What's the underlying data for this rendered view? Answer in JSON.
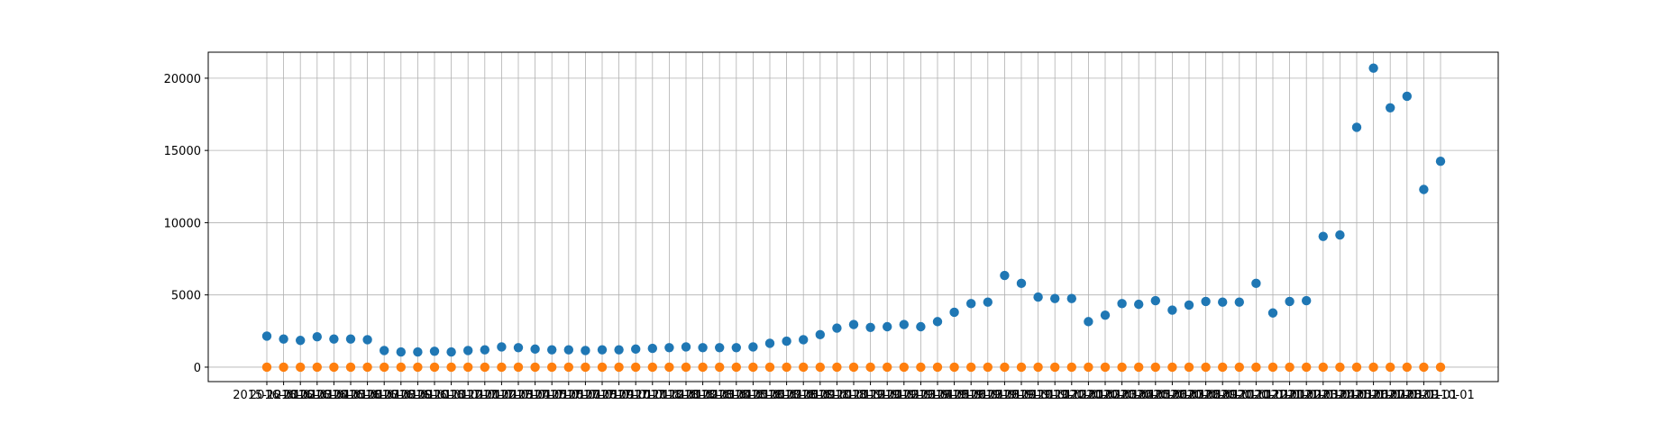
{
  "chart_data": {
    "type": "scatter",
    "title": "",
    "xlabel": "",
    "ylabel": "",
    "grid": true,
    "ylim": [
      -1000,
      21800
    ],
    "y_ticks": [
      0,
      5000,
      10000,
      15000,
      20000
    ],
    "x_tick_labels": [
      "2015-12-01",
      "2016-01-01",
      "2016-02-01",
      "2016-03-01",
      "2016-04-01",
      "2016-05-01",
      "2016-06-01",
      "2016-07-01",
      "2016-08-01",
      "2016-09-01",
      "2016-10-01",
      "2016-11-01",
      "2016-12-01",
      "2017-01-01",
      "2017-02-01",
      "2017-03-01",
      "2017-04-01",
      "2017-05-01",
      "2017-06-01",
      "2017-07-01",
      "2017-08-01",
      "2017-09-01",
      "2017-10-01",
      "2017-11-01",
      "2017-12-01",
      "2018-01-01",
      "2018-02-01",
      "2018-03-01",
      "2018-04-01",
      "2018-05-01",
      "2018-06-01",
      "2018-07-01",
      "2018-08-01",
      "2018-09-01",
      "2018-10-01",
      "2018-11-01",
      "2018-12-01",
      "2019-01-01",
      "2019-02-01",
      "2019-03-01",
      "2019-04-01",
      "2019-05-01",
      "2019-06-01",
      "2019-07-01",
      "2019-08-01",
      "2019-09-01",
      "2019-10-01",
      "2019-11-01",
      "2019-12-01",
      "2020-01-01",
      "2020-02-01",
      "2020-03-01",
      "2020-04-01",
      "2020-05-01",
      "2020-06-01",
      "2020-07-01",
      "2020-08-01",
      "2020-09-01",
      "2020-10-01",
      "2020-11-01",
      "2020-12-01",
      "2021-01-01",
      "2021-02-01",
      "2021-03-01",
      "2021-04-01",
      "2021-05-01",
      "2021-06-01",
      "2021-07-01",
      "2021-08-01",
      "2021-09-01",
      "2021-10-01"
    ],
    "series": [
      {
        "color": "#1f77b4",
        "values": [
          2150,
          1950,
          1850,
          2100,
          1950,
          1950,
          1900,
          1150,
          1050,
          1050,
          1100,
          1050,
          1150,
          1200,
          1400,
          1350,
          1250,
          1200,
          1200,
          1150,
          1200,
          1200,
          1250,
          1300,
          1350,
          1400,
          1350,
          1350,
          1350,
          1400,
          1650,
          1800,
          1900,
          2250,
          2700,
          2950,
          2750,
          2800,
          2950,
          2800,
          3150,
          3800,
          4400,
          4500,
          6350,
          5800,
          4850,
          4750,
          4750,
          3150,
          3600,
          4400,
          4350,
          4600,
          3950,
          4300,
          4550,
          4500,
          4500,
          5800,
          3750,
          4550,
          4600,
          9050,
          9150,
          16600,
          20700,
          17950,
          18750,
          12300,
          14250
        ]
      },
      {
        "color": "#ff7f0e",
        "values": [
          0,
          0,
          0,
          0,
          0,
          0,
          0,
          0,
          0,
          0,
          0,
          0,
          0,
          0,
          0,
          0,
          0,
          0,
          0,
          0,
          0,
          0,
          0,
          0,
          0,
          0,
          0,
          0,
          0,
          0,
          0,
          0,
          0,
          0,
          0,
          0,
          0,
          0,
          0,
          0,
          0,
          0,
          0,
          0,
          0,
          0,
          0,
          0,
          0,
          0,
          0,
          0,
          0,
          0,
          0,
          0,
          0,
          0,
          0,
          0,
          0,
          0,
          0,
          0,
          0,
          0,
          0,
          0,
          0,
          0,
          0
        ]
      }
    ]
  }
}
